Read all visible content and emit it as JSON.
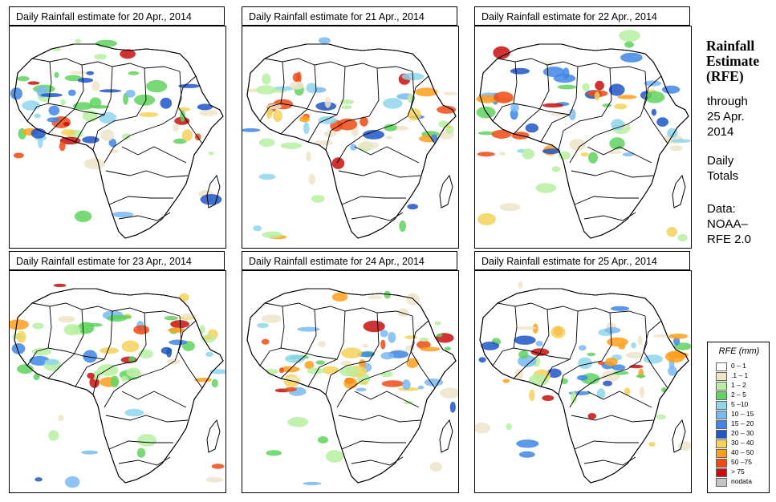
{
  "panels": [
    {
      "title": "Daily Rainfall estimate for  20 Apr., 2014"
    },
    {
      "title": "Daily Rainfall estimate for  21 Apr., 2014"
    },
    {
      "title": "Daily Rainfall estimate for  22 Apr., 2014"
    },
    {
      "title": "Daily Rainfall estimate for  23 Apr., 2014"
    },
    {
      "title": "Daily Rainfall estimate for  24 Apr., 2014"
    },
    {
      "title": "Daily Rainfall estimate for  25 Apr., 2014"
    }
  ],
  "sidebar": {
    "title_line1": "Rainfall",
    "title_line2": "Estimate",
    "title_line3": "(RFE)",
    "through_label": "through",
    "date_line1": "25 Apr.",
    "date_line2": "2014",
    "daily_line1": "Daily",
    "daily_line2": "Totals",
    "data_line1": "Data:",
    "data_line2": "NOAA–",
    "data_line3": "RFE 2.0"
  },
  "legend": {
    "title": "RFE (mm)",
    "items": [
      {
        "label": "0 – 1",
        "color": "#ffffff"
      },
      {
        "label": ".1 – 1",
        "color": "#efe4c9"
      },
      {
        "label": "1 – 2",
        "color": "#b7f0a1"
      },
      {
        "label": "2 – 5",
        "color": "#5fd35f"
      },
      {
        "label": "5 –10",
        "color": "#8fd6ec"
      },
      {
        "label": "10 – 15",
        "color": "#7ab8f5"
      },
      {
        "label": "15 – 20",
        "color": "#3e86e6"
      },
      {
        "label": "20 – 30",
        "color": "#1f56c8"
      },
      {
        "label": "30 – 40",
        "color": "#f5d25a"
      },
      {
        "label": "40 – 50",
        "color": "#ff9f1a"
      },
      {
        "label": "50 –75",
        "color": "#f04a14"
      },
      {
        "label": "> 75",
        "color": "#c80f0f"
      },
      {
        "label": "nodata",
        "color": "#c4c4c4"
      }
    ]
  }
}
